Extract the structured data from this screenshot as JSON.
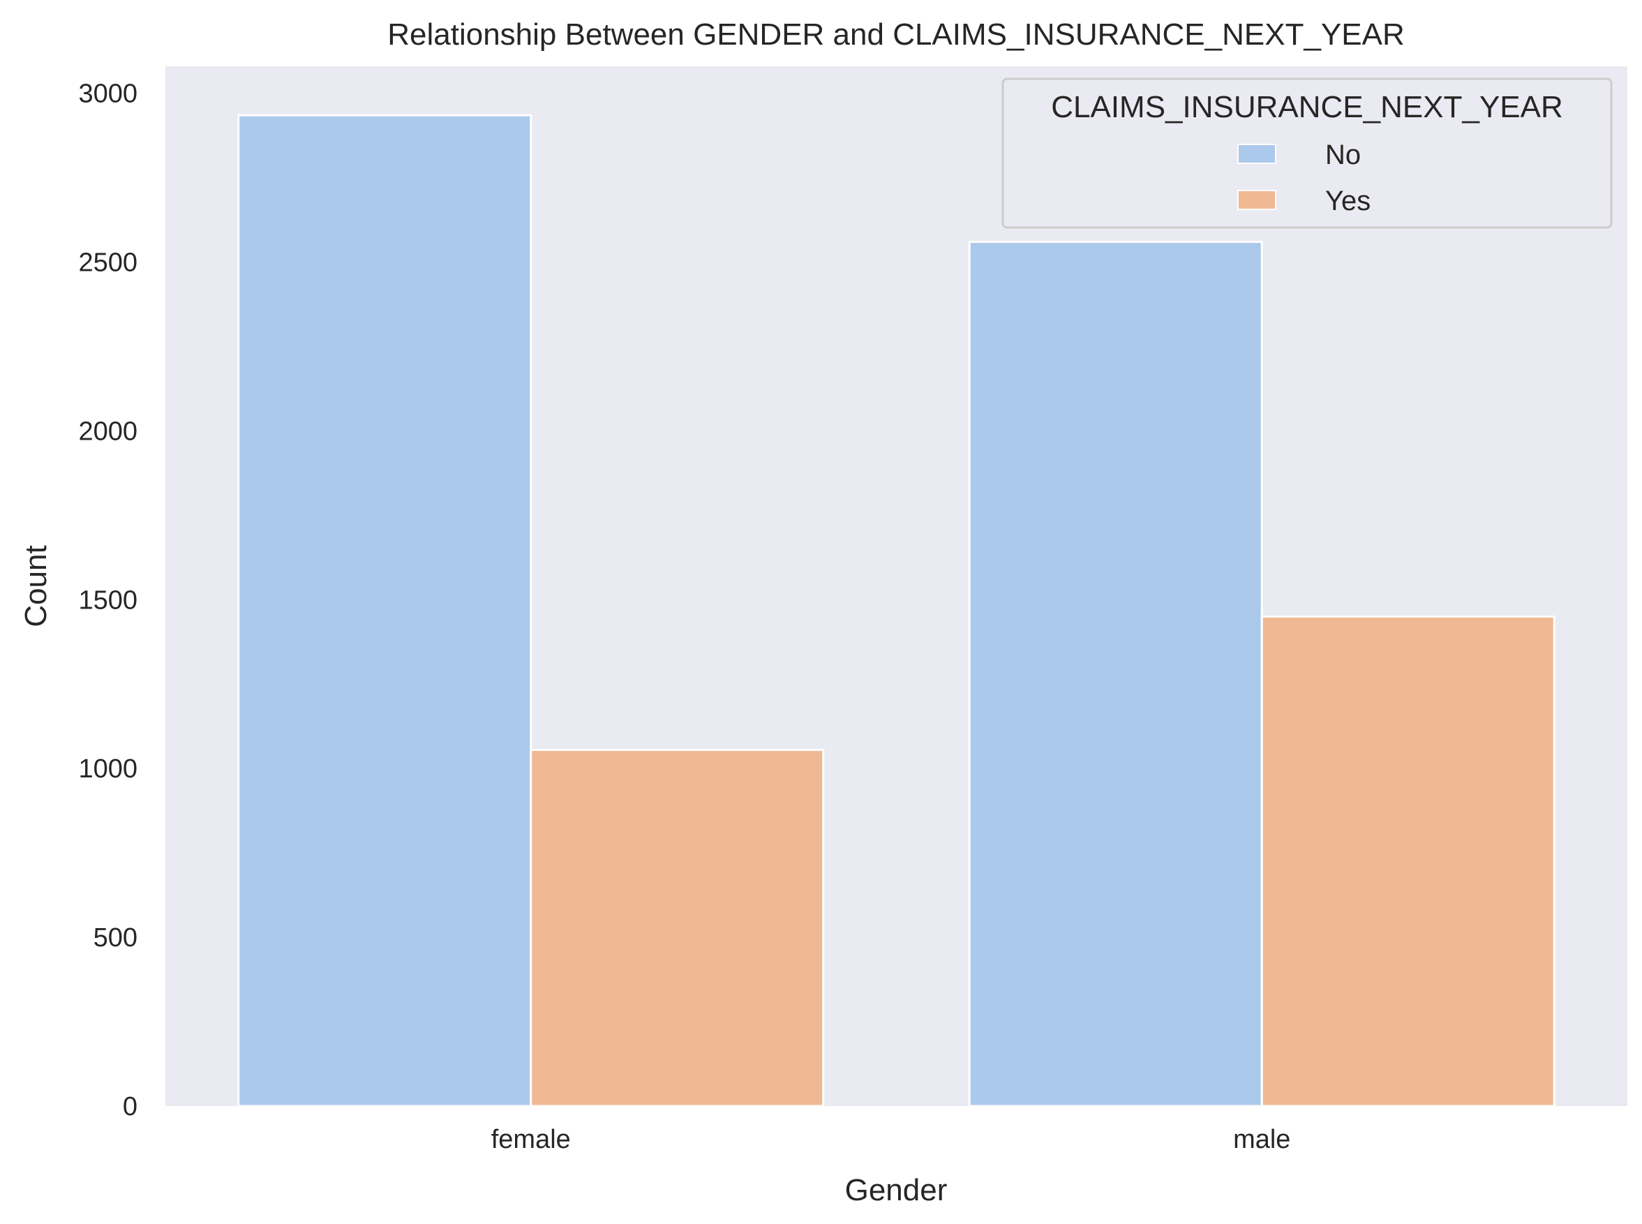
{
  "chart_data": {
    "type": "bar",
    "title": "Relationship Between GENDER and CLAIMS_INSURANCE_NEXT_YEAR",
    "xlabel": "Gender",
    "ylabel": "Count",
    "categories": [
      "female",
      "male"
    ],
    "series": [
      {
        "name": "No",
        "color": "#abc9eb",
        "values": [
          2935,
          2560
        ]
      },
      {
        "name": "Yes",
        "color": "#f0b893",
        "values": [
          1055,
          1450
        ]
      }
    ],
    "ylim": [
      0,
      3080
    ],
    "yticks": [
      0,
      500,
      1000,
      1500,
      2000,
      2500,
      3000
    ],
    "legend": {
      "title": "CLAIMS_INSURANCE_NEXT_YEAR",
      "position": "upper right"
    },
    "grid": false,
    "background_color": "#eaeaf2"
  }
}
